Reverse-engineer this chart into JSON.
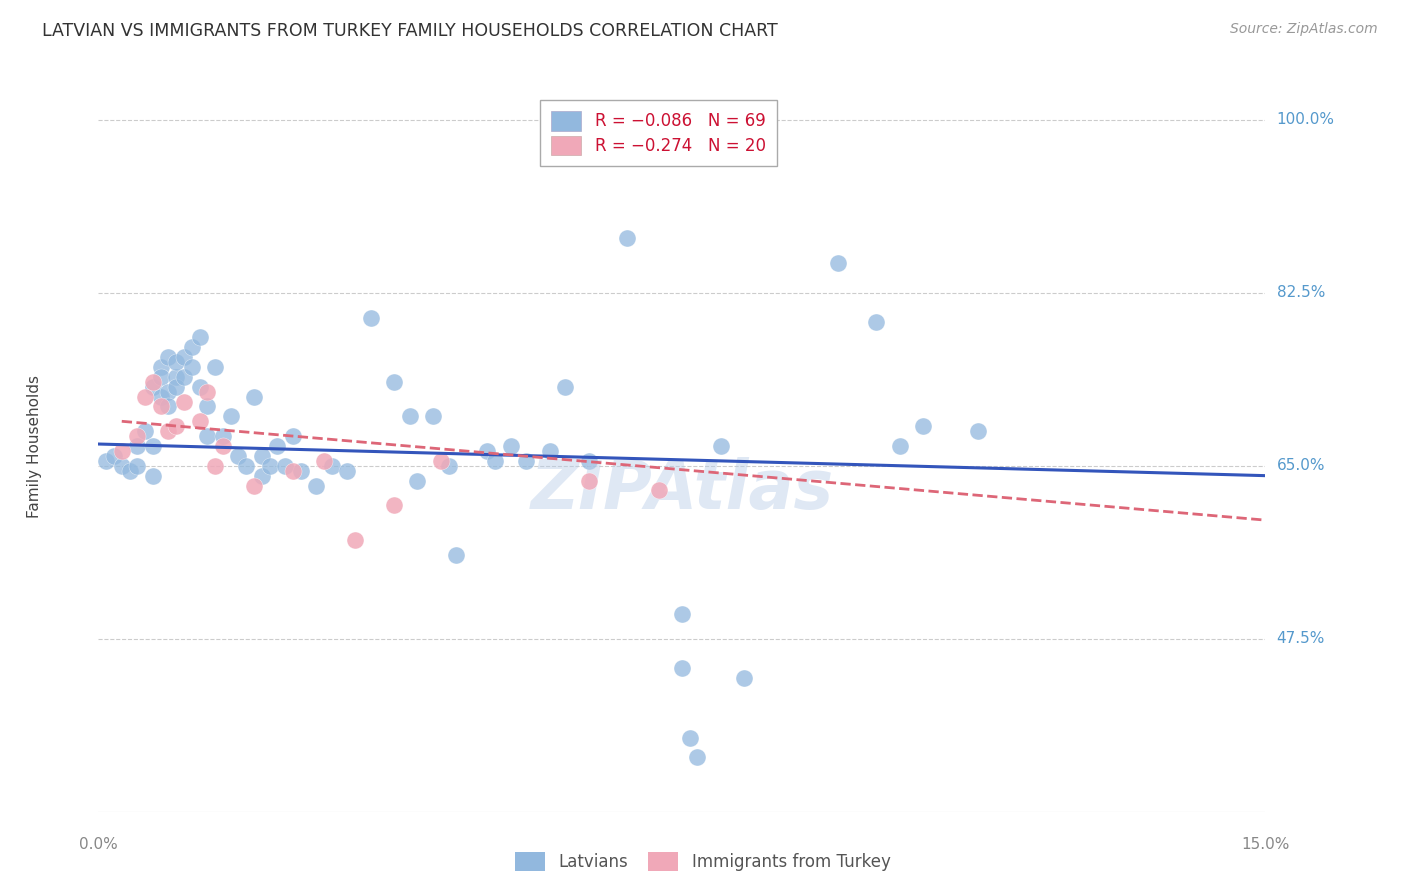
{
  "title": "LATVIAN VS IMMIGRANTS FROM TURKEY FAMILY HOUSEHOLDS CORRELATION CHART",
  "source": "Source: ZipAtlas.com",
  "ylabel": "Family Households",
  "yticks": [
    47.5,
    65.0,
    82.5,
    100.0
  ],
  "ytick_labels": [
    "47.5%",
    "65.0%",
    "82.5%",
    "100.0%"
  ],
  "xmin": 0.0,
  "xmax": 15.0,
  "ymin": 30.0,
  "ymax": 104.0,
  "blue_color": "#92b8de",
  "pink_color": "#f0a8b8",
  "blue_line_color": "#3355bb",
  "pink_line_color": "#dd6677",
  "watermark": "ZIPAtlas",
  "blue_points": [
    [
      0.1,
      65.5
    ],
    [
      0.2,
      66.0
    ],
    [
      0.3,
      65.0
    ],
    [
      0.4,
      64.5
    ],
    [
      0.5,
      67.0
    ],
    [
      0.5,
      65.0
    ],
    [
      0.6,
      68.5
    ],
    [
      0.7,
      67.0
    ],
    [
      0.7,
      64.0
    ],
    [
      0.7,
      73.0
    ],
    [
      0.8,
      75.0
    ],
    [
      0.8,
      72.0
    ],
    [
      0.8,
      74.0
    ],
    [
      0.9,
      72.5
    ],
    [
      0.9,
      76.0
    ],
    [
      0.9,
      71.0
    ],
    [
      1.0,
      74.0
    ],
    [
      1.0,
      75.5
    ],
    [
      1.0,
      73.0
    ],
    [
      1.1,
      74.0
    ],
    [
      1.1,
      76.0
    ],
    [
      1.2,
      77.0
    ],
    [
      1.2,
      75.0
    ],
    [
      1.3,
      78.0
    ],
    [
      1.3,
      73.0
    ],
    [
      1.4,
      71.0
    ],
    [
      1.4,
      68.0
    ],
    [
      1.5,
      75.0
    ],
    [
      1.6,
      68.0
    ],
    [
      1.7,
      70.0
    ],
    [
      1.8,
      66.0
    ],
    [
      1.9,
      65.0
    ],
    [
      2.0,
      72.0
    ],
    [
      2.1,
      64.0
    ],
    [
      2.1,
      66.0
    ],
    [
      2.2,
      65.0
    ],
    [
      2.3,
      67.0
    ],
    [
      2.4,
      65.0
    ],
    [
      2.5,
      68.0
    ],
    [
      2.6,
      64.5
    ],
    [
      2.8,
      63.0
    ],
    [
      3.0,
      65.0
    ],
    [
      3.2,
      64.5
    ],
    [
      3.5,
      80.0
    ],
    [
      3.8,
      73.5
    ],
    [
      4.0,
      70.0
    ],
    [
      4.1,
      63.5
    ],
    [
      4.3,
      70.0
    ],
    [
      4.5,
      65.0
    ],
    [
      4.6,
      56.0
    ],
    [
      5.0,
      66.5
    ],
    [
      5.1,
      65.5
    ],
    [
      5.3,
      67.0
    ],
    [
      5.5,
      65.5
    ],
    [
      5.8,
      66.5
    ],
    [
      6.0,
      73.0
    ],
    [
      6.3,
      65.5
    ],
    [
      6.8,
      88.0
    ],
    [
      7.5,
      50.0
    ],
    [
      7.5,
      44.5
    ],
    [
      7.6,
      37.5
    ],
    [
      7.7,
      35.5
    ],
    [
      8.0,
      67.0
    ],
    [
      8.3,
      43.5
    ],
    [
      9.5,
      85.5
    ],
    [
      10.0,
      79.5
    ],
    [
      10.3,
      67.0
    ],
    [
      10.6,
      69.0
    ],
    [
      11.3,
      68.5
    ]
  ],
  "pink_points": [
    [
      0.3,
      66.5
    ],
    [
      0.5,
      68.0
    ],
    [
      0.6,
      72.0
    ],
    [
      0.7,
      73.5
    ],
    [
      0.8,
      71.0
    ],
    [
      0.9,
      68.5
    ],
    [
      1.0,
      69.0
    ],
    [
      1.1,
      71.5
    ],
    [
      1.3,
      69.5
    ],
    [
      1.4,
      72.5
    ],
    [
      1.5,
      65.0
    ],
    [
      1.6,
      67.0
    ],
    [
      2.0,
      63.0
    ],
    [
      2.5,
      64.5
    ],
    [
      2.9,
      65.5
    ],
    [
      3.3,
      57.5
    ],
    [
      3.8,
      61.0
    ],
    [
      4.4,
      65.5
    ],
    [
      6.3,
      63.5
    ],
    [
      7.2,
      62.5
    ]
  ],
  "blue_line_x": [
    0.0,
    15.0
  ],
  "blue_line_y": [
    67.2,
    64.0
  ],
  "pink_line_x": [
    0.3,
    15.0
  ],
  "pink_line_y": [
    69.5,
    59.5
  ],
  "grid_color": "#cccccc",
  "background_color": "#ffffff",
  "title_fontsize": 12.5,
  "axis_label_fontsize": 11,
  "tick_fontsize": 11,
  "source_fontsize": 10,
  "watermark_fontsize": 48,
  "legend_fontsize": 12,
  "legend_r1": "R = −0.086   N = 69",
  "legend_r2": "R = −0.274   N = 20"
}
